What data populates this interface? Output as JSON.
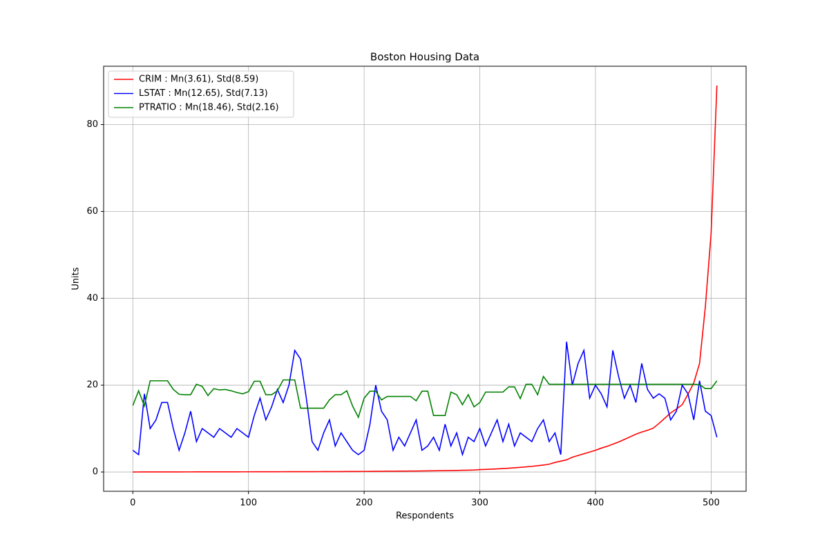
{
  "chart_data": {
    "type": "line",
    "title": "Boston Housing Data",
    "xlabel": "Respondents",
    "ylabel": "Units",
    "x": [
      0,
      5,
      10,
      15,
      20,
      25,
      30,
      35,
      40,
      45,
      50,
      55,
      60,
      65,
      70,
      75,
      80,
      85,
      90,
      95,
      100,
      105,
      110,
      115,
      120,
      125,
      130,
      135,
      140,
      145,
      150,
      155,
      160,
      165,
      170,
      175,
      180,
      185,
      190,
      195,
      200,
      205,
      210,
      215,
      220,
      225,
      230,
      235,
      240,
      245,
      250,
      255,
      260,
      265,
      270,
      275,
      280,
      285,
      290,
      295,
      300,
      305,
      310,
      315,
      320,
      325,
      330,
      335,
      340,
      345,
      350,
      355,
      360,
      365,
      370,
      375,
      380,
      385,
      390,
      395,
      400,
      405,
      410,
      415,
      420,
      425,
      430,
      435,
      440,
      445,
      450,
      455,
      460,
      465,
      470,
      475,
      480,
      485,
      490,
      495,
      500,
      505
    ],
    "series": [
      {
        "name": "CRIM : Mn(3.61), Std(8.59)",
        "color": "#ff0000",
        "values": [
          0.006,
          0.01,
          0.013,
          0.015,
          0.017,
          0.019,
          0.021,
          0.023,
          0.025,
          0.027,
          0.029,
          0.031,
          0.033,
          0.035,
          0.037,
          0.039,
          0.041,
          0.043,
          0.045,
          0.047,
          0.05,
          0.052,
          0.055,
          0.058,
          0.061,
          0.064,
          0.067,
          0.07,
          0.073,
          0.076,
          0.08,
          0.084,
          0.088,
          0.092,
          0.096,
          0.1,
          0.105,
          0.11,
          0.115,
          0.12,
          0.13,
          0.14,
          0.15,
          0.16,
          0.17,
          0.18,
          0.19,
          0.2,
          0.21,
          0.22,
          0.23,
          0.25,
          0.27,
          0.29,
          0.31,
          0.33,
          0.36,
          0.39,
          0.42,
          0.46,
          0.55,
          0.6,
          0.65,
          0.72,
          0.8,
          0.88,
          0.97,
          1.07,
          1.18,
          1.3,
          1.45,
          1.6,
          1.8,
          2.2,
          2.5,
          2.8,
          3.4,
          3.8,
          4.2,
          4.6,
          5.0,
          5.5,
          5.9,
          6.4,
          6.9,
          7.5,
          8.1,
          8.7,
          9.2,
          9.6,
          10.1,
          11.2,
          12.4,
          13.6,
          14.5,
          15.5,
          17.9,
          20.5,
          25,
          38,
          55,
          89
        ]
      },
      {
        "name": "LSTAT : Mn(12.65), Std(7.13)",
        "color": "#0000ff",
        "values": [
          5,
          4,
          18,
          10,
          12,
          16,
          16,
          10,
          5,
          9,
          14,
          7,
          10,
          9,
          8,
          10,
          9,
          8,
          10,
          9,
          8,
          13,
          17,
          12,
          15,
          19,
          16,
          20,
          28,
          26,
          17,
          7,
          5,
          9,
          12,
          6,
          9,
          7,
          5,
          4,
          5,
          11,
          20,
          14,
          12,
          5,
          8,
          6,
          9,
          12,
          5,
          6,
          8,
          5,
          11,
          6,
          9,
          4,
          8,
          7,
          10,
          6,
          9,
          12,
          7,
          11,
          6,
          9,
          8,
          7,
          10,
          12,
          7,
          9,
          4,
          30,
          20,
          25,
          28,
          17,
          20,
          18,
          15,
          28,
          22,
          17,
          20,
          16,
          25,
          19,
          17,
          18,
          17,
          12,
          14,
          20,
          18,
          12,
          21,
          14,
          13,
          8
        ]
      },
      {
        "name": "PTRATIO : Mn(18.46), Std(2.16)",
        "color": "#008000",
        "values": [
          15.3,
          18.7,
          15.2,
          21,
          21,
          21,
          21,
          19,
          17.9,
          17.8,
          17.8,
          20.2,
          19.7,
          17.6,
          19.2,
          18.9,
          19,
          18.7,
          18.3,
          18,
          18.5,
          20.9,
          20.9,
          17.8,
          17.8,
          18.7,
          21.2,
          21.2,
          21.2,
          14.7,
          14.7,
          14.7,
          14.7,
          14.7,
          16.6,
          17.8,
          17.8,
          18.7,
          15.2,
          12.6,
          17,
          18.6,
          18.6,
          16.6,
          17.4,
          17.4,
          17.4,
          17.4,
          17.4,
          16.4,
          18.6,
          18.6,
          13,
          13,
          13,
          18.4,
          17.8,
          15.5,
          17.8,
          15,
          16,
          18.4,
          18.4,
          18.4,
          18.4,
          19.6,
          19.6,
          16.9,
          20.2,
          20.2,
          17.8,
          22,
          20.2,
          20.2,
          20.2,
          20.2,
          20.2,
          20.2,
          20.2,
          20.2,
          20.2,
          20.2,
          20.2,
          20.2,
          20.2,
          20.2,
          20.2,
          20.2,
          20.2,
          20.2,
          20.2,
          20.2,
          20.2,
          20.2,
          20.2,
          20.2,
          20.2,
          20.2,
          20.1,
          19.2,
          19.2,
          21
        ]
      }
    ],
    "xlim": [
      -25.25,
      530.25
    ],
    "xticks": [
      0,
      100,
      200,
      300,
      400,
      500
    ],
    "ylim": [
      -4.44,
      93.43
    ],
    "yticks": [
      0,
      20,
      40,
      60,
      80
    ],
    "grid": true,
    "legend": "upper-left"
  }
}
